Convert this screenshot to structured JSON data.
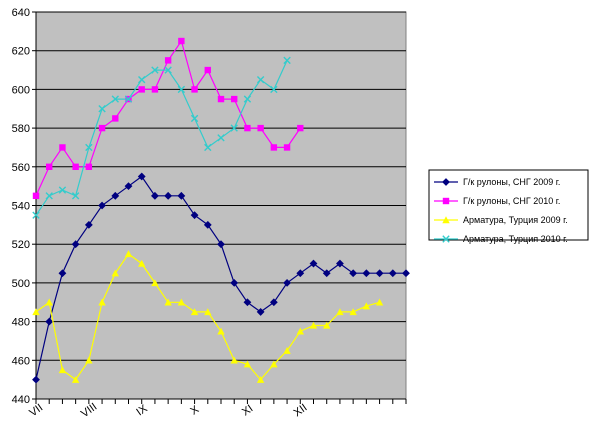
{
  "chart_data": {
    "type": "line",
    "title": "",
    "xlabel": "",
    "ylabel": "",
    "ylim": [
      440,
      640
    ],
    "yticks": [
      440,
      460,
      480,
      500,
      520,
      540,
      560,
      580,
      600,
      620,
      640
    ],
    "x_count": 41,
    "xticks": [
      {
        "index": 0,
        "label": "VII"
      },
      {
        "index": 8,
        "label": "VIII"
      },
      {
        "index": 16,
        "label": "IX"
      },
      {
        "index": 24,
        "label": "X"
      },
      {
        "index": 32,
        "label": "XI"
      },
      {
        "index": 40,
        "label": "XII"
      }
    ],
    "grid": {
      "horizontal": true,
      "vertical": false
    },
    "plot_background": "#c0c0c0",
    "legend_position": "right",
    "series": [
      {
        "name": "Г/к рулоны, СНГ 2009 г.",
        "color": "#000080",
        "marker": "diamond",
        "x": [
          0,
          2,
          4,
          6,
          8,
          10,
          12,
          14,
          16,
          18,
          20,
          22,
          24,
          26,
          28,
          30,
          32,
          34,
          36,
          38,
          40,
          42,
          44,
          46,
          48,
          50,
          52,
          54,
          56
        ],
        "y": [
          450,
          480,
          505,
          520,
          530,
          540,
          545,
          550,
          555,
          545,
          545,
          545,
          535,
          530,
          520,
          500,
          490,
          485,
          490,
          500,
          505,
          510,
          505,
          510,
          505,
          505,
          505,
          505,
          505
        ]
      },
      {
        "name": "Г/к рулоны, СНГ 2010 г.",
        "color": "#ff00ff",
        "marker": "square",
        "x": [
          0,
          2,
          4,
          6,
          8,
          10,
          12,
          14,
          16,
          18,
          20,
          22,
          24,
          26,
          28,
          30,
          32,
          34,
          36,
          38,
          40
        ],
        "y": [
          545,
          560,
          570,
          560,
          560,
          580,
          585,
          595,
          600,
          600,
          615,
          625,
          600,
          610,
          595,
          595,
          580,
          580,
          570,
          570,
          580
        ]
      },
      {
        "name": "Арматура, Турция 2009 г.",
        "color": "#ffff00",
        "marker": "triangle",
        "x": [
          0,
          2,
          4,
          6,
          8,
          10,
          12,
          14,
          16,
          18,
          20,
          22,
          24,
          26,
          28,
          30,
          32,
          34,
          36,
          38,
          40,
          42,
          44,
          46,
          48,
          50,
          52
        ],
        "y": [
          485,
          490,
          455,
          450,
          460,
          490,
          505,
          515,
          510,
          500,
          490,
          490,
          485,
          485,
          475,
          460,
          458,
          450,
          458,
          465,
          475,
          478,
          478,
          485,
          485,
          488,
          490
        ]
      },
      {
        "name": "Арматура, Турция 2010 г.",
        "color": "#33cccc",
        "marker": "x",
        "x": [
          0,
          2,
          4,
          6,
          8,
          10,
          12,
          14,
          16,
          18,
          20,
          22,
          24,
          26,
          28,
          30,
          32,
          34,
          36,
          38
        ],
        "y": [
          535,
          545,
          548,
          545,
          570,
          590,
          595,
          595,
          605,
          610,
          610,
          600,
          585,
          570,
          575,
          580,
          595,
          605,
          600,
          615
        ]
      }
    ]
  }
}
